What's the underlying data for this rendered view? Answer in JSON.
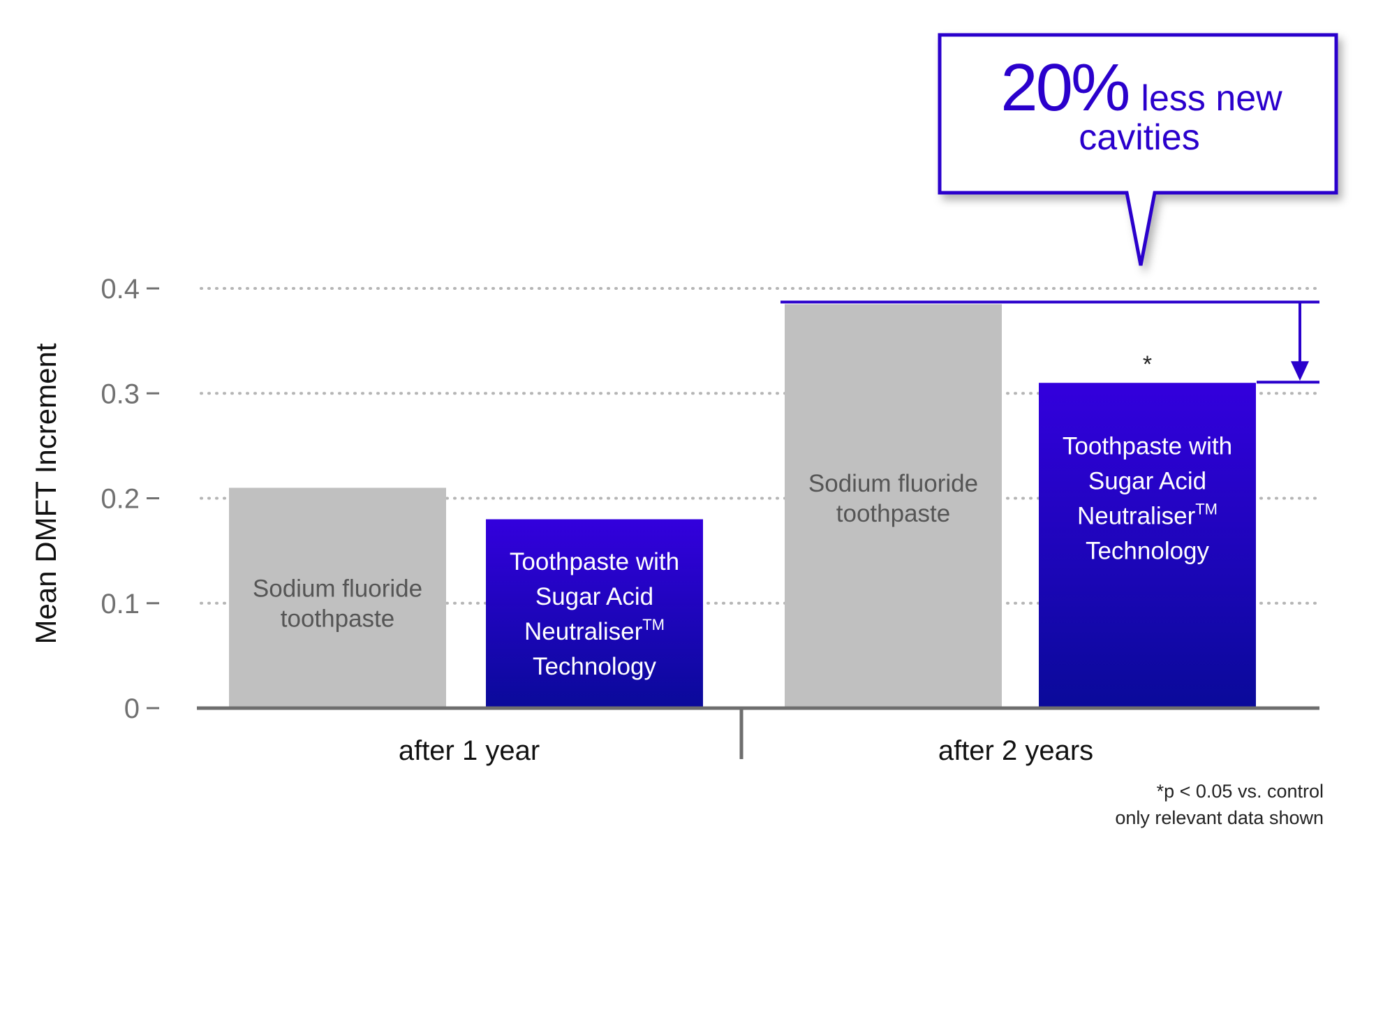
{
  "chart_data": {
    "type": "bar",
    "ylabel": "Mean DMFT Increment",
    "ylim": [
      0,
      0.4
    ],
    "yticks": [
      {
        "value": 0,
        "label": "0"
      },
      {
        "value": 0.1,
        "label": "0.1"
      },
      {
        "value": 0.2,
        "label": "0.2"
      },
      {
        "value": 0.3,
        "label": "0.3"
      },
      {
        "value": 0.4,
        "label": "0.4"
      }
    ],
    "grid": "dotted-horizontal",
    "categories": [
      "after 1 year",
      "after 2 years"
    ],
    "series": [
      {
        "label_lines": [
          "Sodium fluoride",
          "toothpaste"
        ],
        "color": "#c0c0c0",
        "values": [
          0.21,
          0.385
        ]
      },
      {
        "label_lines": [
          "Toothpaste with",
          "Sugar Acid",
          "Neutraliser",
          "Technology"
        ],
        "trademark": "TM",
        "color": "#3300dd",
        "color_bottom": "#0a0a9a",
        "values": [
          0.18,
          0.31
        ]
      }
    ],
    "significance_marker": "*",
    "callout": {
      "big": "20%",
      "line1": "less new",
      "line2": "cavities",
      "color": "#2a00cc"
    },
    "footnotes": [
      "*p < 0.05 vs. control",
      "only relevant data shown"
    ]
  }
}
